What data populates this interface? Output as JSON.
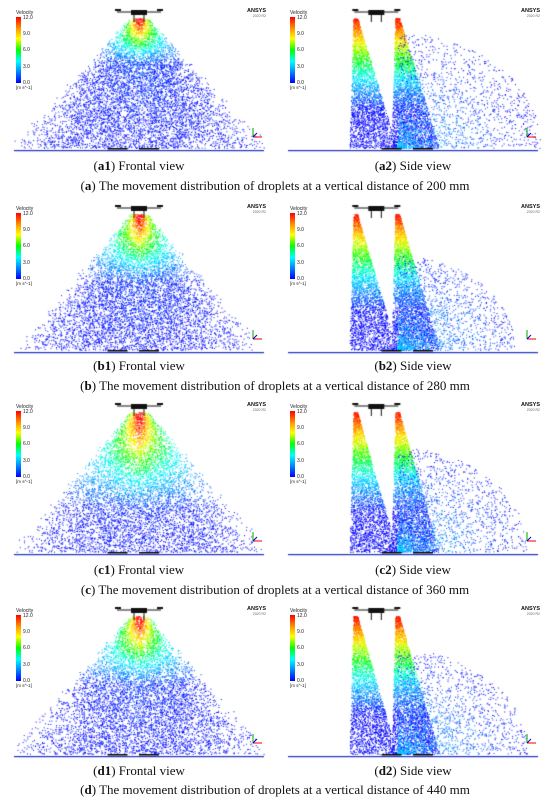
{
  "legend": {
    "label": "Velocity",
    "ticks": [
      "12.0",
      "9.0",
      "6.0",
      "3.0",
      "0.0"
    ],
    "unit": "[m s^-1]"
  },
  "brand": {
    "name": "ANSYS",
    "version": "2020 R2"
  },
  "rows": [
    {
      "left": {
        "tag": "a1",
        "view": "Frontal view"
      },
      "right": {
        "tag": "a2",
        "view": "Side view"
      },
      "title": {
        "tag": "a",
        "text": "The movement distribution of droplets at a vertical distance of 200 mm"
      }
    },
    {
      "left": {
        "tag": "b1",
        "view": "Frontal view"
      },
      "right": {
        "tag": "b2",
        "view": "Side view"
      },
      "title": {
        "tag": "b",
        "text": "The movement distribution of droplets at a vertical distance of 280 mm"
      }
    },
    {
      "left": {
        "tag": "c1",
        "view": "Frontal view"
      },
      "right": {
        "tag": "c2",
        "view": "Side view"
      },
      "title": {
        "tag": "c",
        "text": "The movement distribution of droplets at a vertical distance of 360 mm"
      }
    },
    {
      "left": {
        "tag": "d1",
        "view": "Frontal view"
      },
      "right": {
        "tag": "d2",
        "view": "Side view"
      },
      "title": {
        "tag": "d",
        "text": "The movement distribution of droplets at a vertical distance of 440 mm"
      }
    }
  ]
}
